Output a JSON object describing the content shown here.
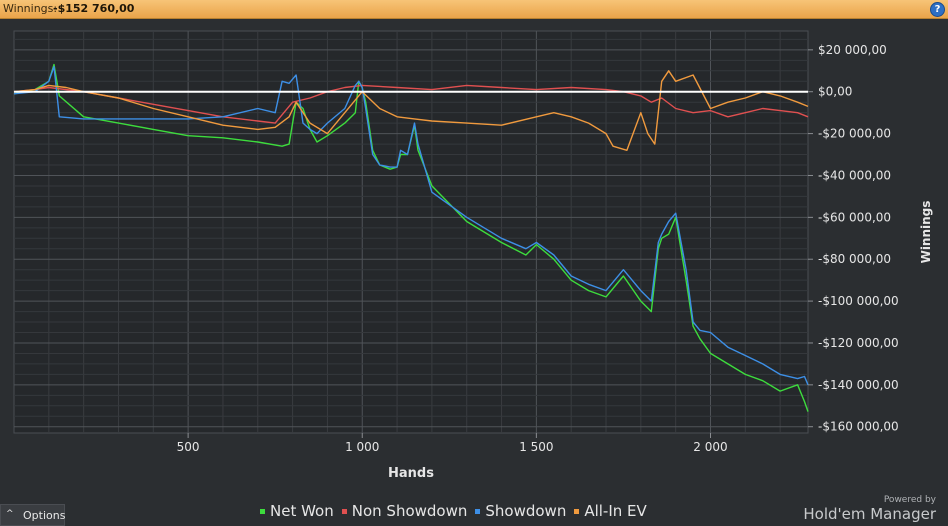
{
  "header": {
    "label": "Winnings:",
    "value": "-$152 760,00",
    "help": "?"
  },
  "options_label": "Options",
  "options_caret": "^",
  "branding": {
    "powered": "Powered by",
    "name": "Hold'em Manager"
  },
  "chart_data": {
    "type": "line",
    "xlabel": "Hands",
    "ylabel": "Winnings",
    "xlim": [
      0,
      2280
    ],
    "ylim": [
      -163000,
      29000
    ],
    "xticks": [
      500,
      1000,
      1500,
      2000
    ],
    "xtick_labels": [
      "500",
      "1 000",
      "1 500",
      "2 000"
    ],
    "yticks": [
      20000,
      0,
      -20000,
      -40000,
      -60000,
      -80000,
      -100000,
      -120000,
      -140000,
      -160000
    ],
    "ytick_labels": [
      "$20 000,00",
      "$0,00",
      "-$20 000,00",
      "-$40 000,00",
      "-$60 000,00",
      "-$80 000,00",
      "-$100 000,00",
      "-$120 000,00",
      "-$140 000,00",
      "-$160 000,00"
    ],
    "grid": true,
    "zero_line": true,
    "legend_position": "bottom",
    "series": [
      {
        "name": "Net Won",
        "color": "#3ddc3d",
        "x": [
          0,
          60,
          100,
          115,
          130,
          200,
          300,
          400,
          500,
          600,
          700,
          770,
          790,
          810,
          830,
          850,
          870,
          900,
          950,
          980,
          990,
          1000,
          1010,
          1030,
          1050,
          1080,
          1100,
          1110,
          1130,
          1150,
          1160,
          1200,
          1300,
          1400,
          1470,
          1500,
          1550,
          1600,
          1650,
          1700,
          1750,
          1800,
          1830,
          1850,
          1860,
          1880,
          1900,
          1930,
          1950,
          1970,
          2000,
          2050,
          2100,
          2150,
          2200,
          2250,
          2270,
          2280
        ],
        "y": [
          -1000,
          1000,
          5000,
          13000,
          -2000,
          -12000,
          -15000,
          -18000,
          -21000,
          -22000,
          -24000,
          -26000,
          -25000,
          -5000,
          -8000,
          -18000,
          -24000,
          -21000,
          -15000,
          -10000,
          5000,
          2000,
          -5000,
          -28000,
          -35000,
          -37000,
          -36000,
          -30000,
          -30000,
          -16000,
          -28000,
          -45000,
          -62000,
          -72000,
          -78000,
          -73000,
          -80000,
          -90000,
          -95000,
          -98000,
          -88000,
          -100000,
          -105000,
          -75000,
          -70000,
          -68000,
          -60000,
          -90000,
          -112000,
          -118000,
          -125000,
          -130000,
          -135000,
          -138000,
          -143000,
          -140000,
          -148000,
          -152760
        ]
      },
      {
        "name": "Non Showdown",
        "color": "#e05050",
        "x": [
          0,
          60,
          100,
          200,
          300,
          400,
          500,
          600,
          700,
          750,
          800,
          850,
          900,
          950,
          1000,
          1100,
          1200,
          1300,
          1400,
          1500,
          1600,
          1700,
          1750,
          1800,
          1830,
          1860,
          1900,
          1950,
          2000,
          2050,
          2100,
          2150,
          2200,
          2250,
          2280
        ],
        "y": [
          0,
          1000,
          2000,
          0,
          -3000,
          -6000,
          -9000,
          -12000,
          -14000,
          -15000,
          -5000,
          -3000,
          0,
          2000,
          3000,
          2000,
          1000,
          3000,
          2000,
          1000,
          2000,
          1000,
          0,
          -2000,
          -5000,
          -3000,
          -8000,
          -10000,
          -9000,
          -12000,
          -10000,
          -8000,
          -9000,
          -10000,
          -12000
        ]
      },
      {
        "name": "Showdown",
        "color": "#3d8fe6",
        "x": [
          0,
          60,
          100,
          115,
          130,
          200,
          300,
          400,
          500,
          600,
          700,
          750,
          770,
          790,
          810,
          830,
          850,
          870,
          900,
          950,
          980,
          990,
          1000,
          1010,
          1030,
          1050,
          1080,
          1100,
          1110,
          1130,
          1150,
          1160,
          1200,
          1300,
          1400,
          1470,
          1500,
          1550,
          1600,
          1650,
          1700,
          1750,
          1800,
          1830,
          1850,
          1860,
          1880,
          1900,
          1930,
          1950,
          1970,
          2000,
          2050,
          2100,
          2150,
          2200,
          2250,
          2270,
          2280
        ],
        "y": [
          -1000,
          0,
          5000,
          12000,
          -12000,
          -13000,
          -13000,
          -13000,
          -13000,
          -12000,
          -8000,
          -10000,
          5000,
          4000,
          8000,
          -15000,
          -18000,
          -20000,
          -15000,
          -8000,
          3000,
          5000,
          2000,
          -8000,
          -30000,
          -35000,
          -36000,
          -36000,
          -28000,
          -30000,
          -15000,
          -25000,
          -48000,
          -60000,
          -70000,
          -75000,
          -72000,
          -78000,
          -88000,
          -92000,
          -95000,
          -85000,
          -95000,
          -100000,
          -72000,
          -68000,
          -62000,
          -58000,
          -85000,
          -110000,
          -114000,
          -115000,
          -122000,
          -126000,
          -130000,
          -135000,
          -137000,
          -136000,
          -140000
        ]
      },
      {
        "name": "All-In EV",
        "color": "#f09a3e",
        "x": [
          0,
          60,
          100,
          150,
          200,
          300,
          400,
          500,
          600,
          700,
          750,
          790,
          810,
          850,
          900,
          950,
          1000,
          1050,
          1100,
          1150,
          1200,
          1300,
          1400,
          1500,
          1550,
          1600,
          1650,
          1700,
          1720,
          1760,
          1800,
          1820,
          1840,
          1860,
          1880,
          1900,
          1950,
          2000,
          2050,
          2100,
          2150,
          2200,
          2250,
          2280
        ],
        "y": [
          0,
          1000,
          3000,
          2000,
          0,
          -3000,
          -8000,
          -12000,
          -16000,
          -18000,
          -17000,
          -12000,
          -5000,
          -15000,
          -20000,
          -10000,
          0,
          -8000,
          -12000,
          -13000,
          -14000,
          -15000,
          -16000,
          -12000,
          -10000,
          -12000,
          -15000,
          -20000,
          -26000,
          -28000,
          -10000,
          -20000,
          -25000,
          5000,
          10000,
          5000,
          8000,
          -8000,
          -5000,
          -3000,
          0,
          -2000,
          -5000,
          -7000
        ]
      }
    ]
  }
}
